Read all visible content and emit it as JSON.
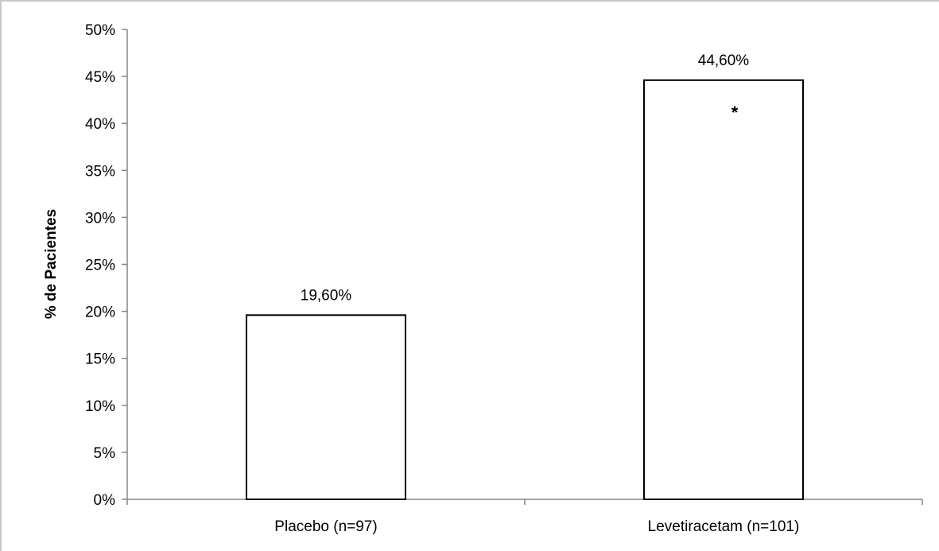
{
  "chart_data": {
    "type": "bar",
    "categories": [
      "Placebo (n=97)",
      "Levetiracetam (n=101)"
    ],
    "values": [
      19.6,
      44.6
    ],
    "data_labels": [
      "19,60%",
      "44,60%"
    ],
    "annotations": [
      "",
      "*"
    ],
    "xlabel": "",
    "ylabel": "% de Pacientes",
    "ylim": [
      0,
      50
    ],
    "yticks": [
      0,
      5,
      10,
      15,
      20,
      25,
      30,
      35,
      40,
      45,
      50
    ],
    "ytick_labels": [
      "0%",
      "5%",
      "10%",
      "15%",
      "20%",
      "25%",
      "30%",
      "35%",
      "40%",
      "45%",
      "50%"
    ],
    "grid": false,
    "legend": "none",
    "colors": {
      "bar_fill": "#ffffff",
      "bar_stroke": "#000000",
      "axis": "#868686"
    }
  }
}
